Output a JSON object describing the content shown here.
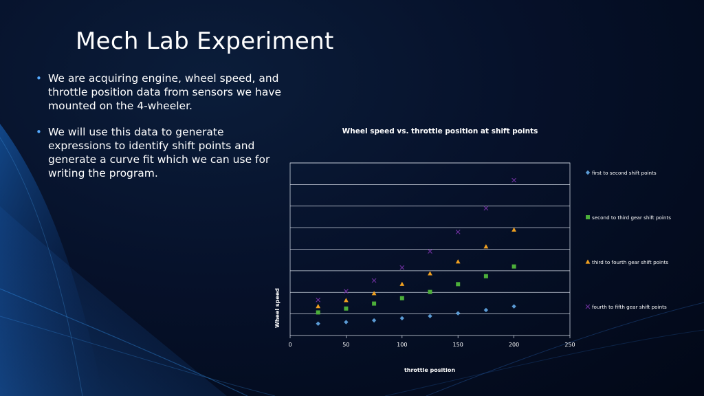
{
  "slide": {
    "title": "Mech Lab Experiment",
    "bullets": [
      "We are acquiring engine, wheel speed, and throttle position data from sensors we have mounted on the 4-wheeler.",
      "We will use this data to generate expressions to identify shift points and generate a curve fit which we can use for writing the program."
    ]
  },
  "chart_data": {
    "type": "scatter",
    "title": "Wheel speed vs. throttle position at shift points",
    "xlabel": "throttle position",
    "ylabel": "Wheel speed",
    "xlim": [
      0,
      250
    ],
    "xticks": [
      0,
      50,
      100,
      150,
      200,
      250
    ],
    "ylim": [
      0,
      8
    ],
    "y_gridlines": [
      1,
      2,
      3,
      4,
      5,
      6,
      7,
      8
    ],
    "legend_position": "right",
    "series": [
      {
        "name": "first to second shift points",
        "marker": "diamond",
        "color": "#5b9bd5",
        "x": [
          25,
          50,
          75,
          100,
          125,
          150,
          175,
          200
        ],
        "y": [
          0.55,
          0.62,
          0.7,
          0.8,
          0.9,
          1.03,
          1.18,
          1.35
        ]
      },
      {
        "name": "second to third gear shift points",
        "marker": "square",
        "color": "#4caf3a",
        "x": [
          25,
          50,
          75,
          100,
          125,
          150,
          175,
          200
        ],
        "y": [
          1.07,
          1.25,
          1.48,
          1.73,
          2.02,
          2.38,
          2.75,
          3.2
        ]
      },
      {
        "name": "third to fourth gear shift points",
        "marker": "triangle",
        "color": "#f0a020",
        "x": [
          25,
          50,
          75,
          100,
          125,
          150,
          175,
          200
        ],
        "y": [
          1.35,
          1.63,
          1.95,
          2.38,
          2.87,
          3.42,
          4.12,
          4.9
        ]
      },
      {
        "name": "fourth to fifth gear shift points",
        "marker": "x",
        "color": "#7030a0",
        "x": [
          25,
          50,
          75,
          100,
          125,
          150,
          175,
          200
        ],
        "y": [
          1.65,
          2.05,
          2.55,
          3.15,
          3.9,
          4.8,
          5.9,
          7.2
        ]
      }
    ]
  }
}
